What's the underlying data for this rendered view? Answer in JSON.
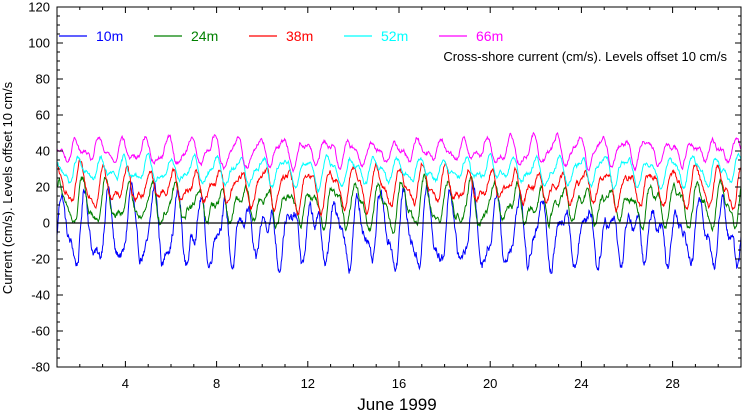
{
  "chart_data": {
    "type": "line",
    "xlabel": "June 1999",
    "ylabel": "Current (cm/s). Levels offset 10 cm/s",
    "annotation": "Cross-shore current (cm/s). Levels offset 10 cm/s",
    "xlim": [
      1,
      31
    ],
    "ylim": [
      -80,
      120
    ],
    "x_ticks": [
      4,
      8,
      12,
      16,
      20,
      24,
      28
    ],
    "y_ticks": [
      -80,
      -60,
      -40,
      -20,
      0,
      20,
      40,
      60,
      80,
      100,
      120
    ],
    "legend_position": "top-left",
    "zero_line": 0,
    "series": [
      {
        "name": "10m",
        "color": "#0000ff",
        "offset": 0,
        "amplitude": 15,
        "mean": -5
      },
      {
        "name": "24m",
        "color": "#008000",
        "offset": 10,
        "amplitude": 9,
        "mean": 0
      },
      {
        "name": "38m",
        "color": "#ff0000",
        "offset": 20,
        "amplitude": 8,
        "mean": 0
      },
      {
        "name": "52m",
        "color": "#00ffff",
        "offset": 30,
        "amplitude": 6,
        "mean": -1
      },
      {
        "name": "66m",
        "color": "#ff00ff",
        "offset": 40,
        "amplitude": 6,
        "mean": 0
      }
    ]
  }
}
